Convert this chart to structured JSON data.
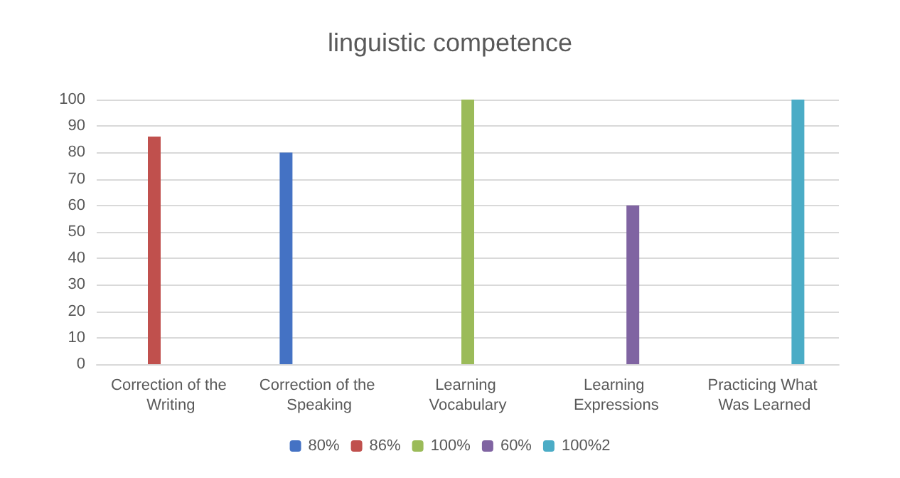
{
  "chart_data": {
    "type": "bar",
    "title": "linguistic competence",
    "categories": [
      "Correction of the Writing",
      "Correction of the Speaking",
      "Learning Vocabulary",
      "Learning Expressions",
      "Practicing What Was Learned"
    ],
    "series": [
      {
        "name": "80%",
        "color": "#4472c4",
        "values": [
          null,
          80,
          null,
          null,
          null
        ]
      },
      {
        "name": "86%",
        "color": "#c0504d",
        "values": [
          86,
          null,
          null,
          null,
          null
        ]
      },
      {
        "name": "100%",
        "color": "#9bbb59",
        "values": [
          null,
          null,
          100,
          null,
          null
        ]
      },
      {
        "name": "60%",
        "color": "#8064a2",
        "values": [
          null,
          null,
          null,
          60,
          null
        ]
      },
      {
        "name": "100%2",
        "color": "#4bacc6",
        "values": [
          null,
          null,
          null,
          null,
          100
        ]
      }
    ],
    "ylim": [
      0,
      100
    ],
    "yticks": [
      0,
      10,
      20,
      30,
      40,
      50,
      60,
      70,
      80,
      90,
      100
    ],
    "grid": "y",
    "legend": "bottom"
  }
}
